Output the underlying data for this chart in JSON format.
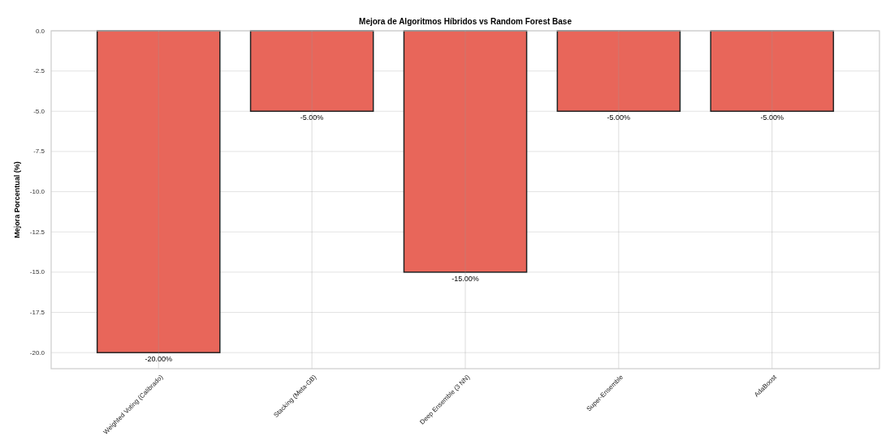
{
  "chart_data": {
    "type": "bar",
    "title": "Mejora de Algoritmos Híbridos vs Random Forest Base",
    "ylabel": "Mejora Porcentual (%)",
    "categories": [
      "Weighted Voting (Calibrado)",
      "Stacking (Meta-GB)",
      "Deep Ensemble (3 NN)",
      "Super-Ensemble",
      "AdaBoost"
    ],
    "values": [
      -20,
      -5,
      -15,
      -5,
      -5
    ],
    "color": "#e8665a",
    "value_labels": [
      "-20.00%",
      "-5.00%",
      "-15.00%",
      "-5.00%",
      "-5.00%"
    ],
    "ylim": [
      -21,
      0
    ],
    "yticks": [
      {
        "value": 0,
        "label": "0.0"
      },
      {
        "value": -2.5,
        "label": "-2.5"
      },
      {
        "value": -5,
        "label": "-5.0"
      },
      {
        "value": -7.5,
        "label": "-7.5"
      },
      {
        "value": -10,
        "label": "-10.0"
      },
      {
        "value": -12.5,
        "label": "-12.5"
      },
      {
        "value": -15,
        "label": "-15.0"
      },
      {
        "value": -17.5,
        "label": "-17.5"
      },
      {
        "value": -20,
        "label": "-20.0"
      }
    ],
    "grid": true
  }
}
